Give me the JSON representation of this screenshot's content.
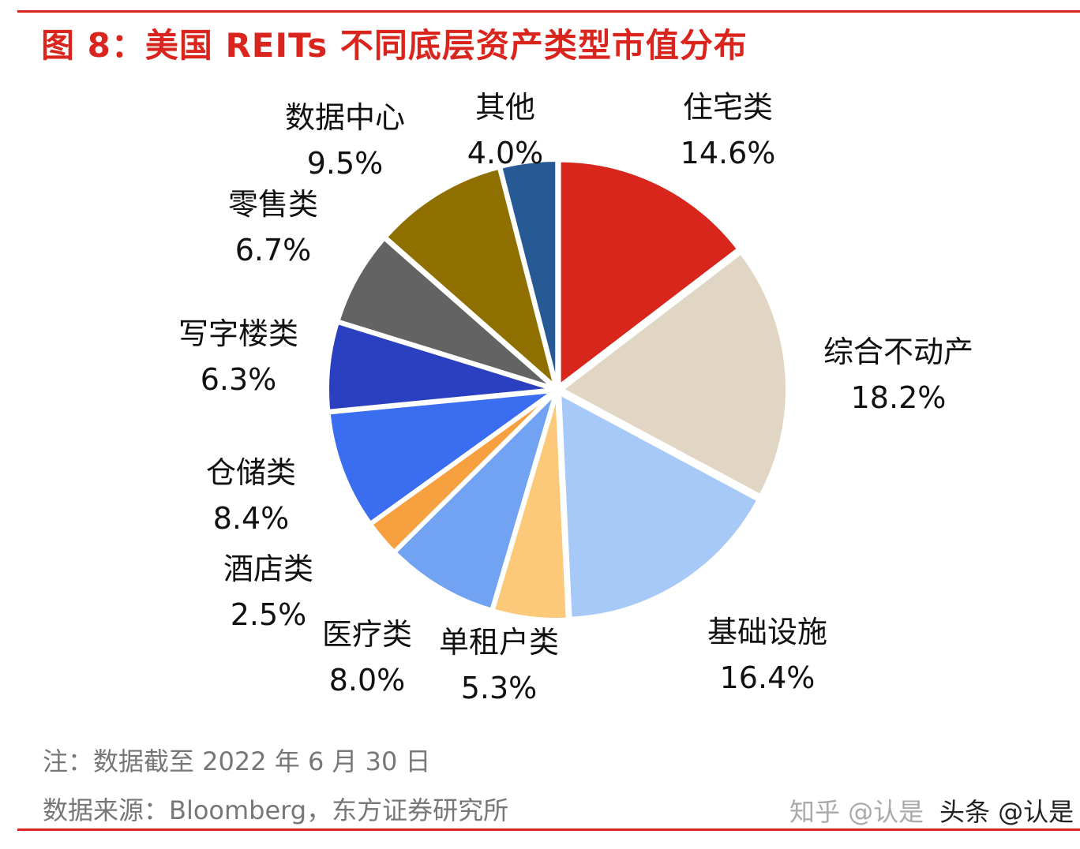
{
  "chart_data": {
    "type": "pie",
    "title": "图 8：美国 REITs 不同底层资产类型市值分布",
    "unit": "%",
    "start": "12 o'clock, clockwise",
    "slices": [
      {
        "label": "住宅类",
        "value": 14.6,
        "display": "14.6%",
        "color": "#d9261c"
      },
      {
        "label": "综合不动产",
        "value": 18.2,
        "display": "18.2%",
        "color": "#e0d6c3"
      },
      {
        "label": "基础设施",
        "value": 16.4,
        "display": "16.4%",
        "color": "#a6c9f7"
      },
      {
        "label": "单租户类",
        "value": 5.3,
        "display": "5.3%",
        "color": "#fcc97a"
      },
      {
        "label": "医疗类",
        "value": 8.0,
        "display": "8.0%",
        "color": "#72a3f3"
      },
      {
        "label": "酒店类",
        "value": 2.5,
        "display": "2.5%",
        "color": "#f7a040"
      },
      {
        "label": "仓储类",
        "value": 8.4,
        "display": "8.4%",
        "color": "#3a6df0"
      },
      {
        "label": "写字楼类",
        "value": 6.3,
        "display": "6.3%",
        "color": "#2a40c0"
      },
      {
        "label": "零售类",
        "value": 6.7,
        "display": "6.7%",
        "color": "#636363"
      },
      {
        "label": "数据中心",
        "value": 9.5,
        "display": "9.5%",
        "color": "#8f6f00"
      },
      {
        "label": "其他",
        "value": 4.0,
        "display": "4.0%",
        "color": "#275a94"
      }
    ]
  },
  "notes": {
    "note": "注：数据截至 2022 年 6 月 30 日",
    "source": "数据来源：Bloomberg，东方证券研究所"
  },
  "watermark": [
    "知乎 @认是",
    "头条 @认是"
  ],
  "colors": {
    "accent": "#d9251d"
  }
}
